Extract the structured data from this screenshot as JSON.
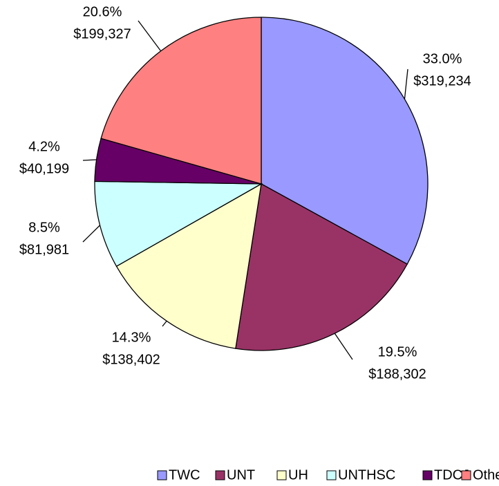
{
  "chart_data": {
    "type": "pie",
    "categories": [
      "TWC",
      "UNT",
      "UH",
      "UNTHSC",
      "TDCJ",
      "Other"
    ],
    "values": [
      319234,
      188302,
      138402,
      81981,
      40199,
      199327
    ],
    "value_labels": [
      "$319,234",
      "$188,302",
      "$138,402",
      "$81,981",
      "$40,199",
      "$199,327"
    ],
    "percent_labels": [
      "33.0%",
      "19.5%",
      "14.3%",
      "8.5%",
      "4.2%",
      "20.6%"
    ],
    "colors": [
      "#9999ff",
      "#993366",
      "#ffffcc",
      "#ccffff",
      "#660066",
      "#ff8080"
    ],
    "legend": "bottom"
  }
}
